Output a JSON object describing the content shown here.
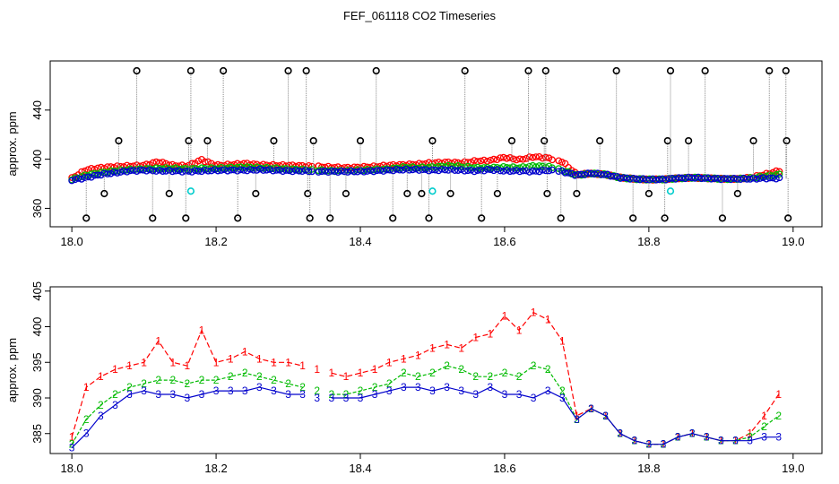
{
  "title": "FEF_061118  CO2 Timeseries",
  "colors": {
    "series1": "#ff0000",
    "series2": "#00bb00",
    "series3": "#0000cc",
    "flagged": "#000000",
    "cyan": "#00cccc",
    "axis": "#000000",
    "spike_line": "#888888"
  },
  "chart_data": [
    {
      "type": "scatter",
      "panel": "top",
      "xlabel": "",
      "ylabel": "approx. ppm",
      "xlim": [
        17.97,
        19.04
      ],
      "ylim": [
        345,
        480
      ],
      "x_ticks": [
        18.0,
        18.2,
        18.4,
        18.6,
        18.8,
        19.0
      ],
      "x_tick_labels": [
        "18.0",
        "18.2",
        "18.4",
        "18.6",
        "18.8",
        "19.0"
      ],
      "y_ticks": [
        360,
        400,
        440
      ],
      "y_tick_labels": [
        "360",
        "400",
        "440"
      ],
      "gaps": [
        [
          18.335,
          18.342
        ],
        [
          18.668,
          18.675
        ]
      ],
      "flagged_points": [
        {
          "x": 18.02,
          "y": 352
        },
        {
          "x": 18.045,
          "y": 372
        },
        {
          "x": 18.065,
          "y": 415
        },
        {
          "x": 18.09,
          "y": 472
        },
        {
          "x": 18.112,
          "y": 352
        },
        {
          "x": 18.135,
          "y": 372
        },
        {
          "x": 18.158,
          "y": 352
        },
        {
          "x": 18.162,
          "y": 415
        },
        {
          "x": 18.165,
          "y": 472
        },
        {
          "x": 18.188,
          "y": 415
        },
        {
          "x": 18.21,
          "y": 472
        },
        {
          "x": 18.23,
          "y": 352
        },
        {
          "x": 18.255,
          "y": 372
        },
        {
          "x": 18.28,
          "y": 415
        },
        {
          "x": 18.3,
          "y": 472
        },
        {
          "x": 18.325,
          "y": 472
        },
        {
          "x": 18.327,
          "y": 372
        },
        {
          "x": 18.33,
          "y": 352
        },
        {
          "x": 18.335,
          "y": 415
        },
        {
          "x": 18.358,
          "y": 352
        },
        {
          "x": 18.38,
          "y": 372
        },
        {
          "x": 18.4,
          "y": 415
        },
        {
          "x": 18.422,
          "y": 472
        },
        {
          "x": 18.445,
          "y": 352
        },
        {
          "x": 18.465,
          "y": 372
        },
        {
          "x": 18.485,
          "y": 372
        },
        {
          "x": 18.495,
          "y": 352
        },
        {
          "x": 18.5,
          "y": 415
        },
        {
          "x": 18.525,
          "y": 372
        },
        {
          "x": 18.545,
          "y": 472
        },
        {
          "x": 18.568,
          "y": 352
        },
        {
          "x": 18.59,
          "y": 372
        },
        {
          "x": 18.61,
          "y": 415
        },
        {
          "x": 18.633,
          "y": 472
        },
        {
          "x": 18.655,
          "y": 415
        },
        {
          "x": 18.657,
          "y": 472
        },
        {
          "x": 18.659,
          "y": 372
        },
        {
          "x": 18.678,
          "y": 352
        },
        {
          "x": 18.7,
          "y": 372
        },
        {
          "x": 18.732,
          "y": 415
        },
        {
          "x": 18.755,
          "y": 472
        },
        {
          "x": 18.778,
          "y": 352
        },
        {
          "x": 18.8,
          "y": 372
        },
        {
          "x": 18.822,
          "y": 352
        },
        {
          "x": 18.826,
          "y": 415
        },
        {
          "x": 18.83,
          "y": 472
        },
        {
          "x": 18.855,
          "y": 415
        },
        {
          "x": 18.878,
          "y": 472
        },
        {
          "x": 18.902,
          "y": 352
        },
        {
          "x": 18.923,
          "y": 372
        },
        {
          "x": 18.945,
          "y": 415
        },
        {
          "x": 18.967,
          "y": 472
        },
        {
          "x": 18.99,
          "y": 472
        },
        {
          "x": 18.991,
          "y": 415
        },
        {
          "x": 18.993,
          "y": 352
        }
      ],
      "cyan_points": [
        {
          "x": 18.165,
          "y": 374
        },
        {
          "x": 18.5,
          "y": 374
        },
        {
          "x": 18.83,
          "y": 374
        }
      ]
    },
    {
      "type": "line",
      "panel": "bottom",
      "xlabel": "",
      "ylabel": "approx. ppm",
      "xlim": [
        17.97,
        19.04
      ],
      "ylim": [
        382.2,
        405.6
      ],
      "x_ticks": [
        18.0,
        18.2,
        18.4,
        18.6,
        18.8,
        19.0
      ],
      "x_tick_labels": [
        "18.0",
        "18.2",
        "18.4",
        "18.6",
        "18.8",
        "19.0"
      ],
      "y_ticks": [
        385,
        390,
        395,
        400,
        405
      ],
      "y_tick_labels": [
        "385",
        "390",
        "395",
        "400",
        "405"
      ],
      "gaps": [
        [
          18.335,
          18.342
        ],
        [
          18.668,
          18.675
        ]
      ],
      "x": [
        18.0,
        18.02,
        18.04,
        18.06,
        18.08,
        18.1,
        18.12,
        18.14,
        18.16,
        18.18,
        18.2,
        18.22,
        18.24,
        18.26,
        18.28,
        18.3,
        18.32,
        18.34,
        18.36,
        18.38,
        18.4,
        18.42,
        18.44,
        18.46,
        18.48,
        18.5,
        18.52,
        18.54,
        18.56,
        18.58,
        18.6,
        18.62,
        18.64,
        18.66,
        18.68,
        18.7,
        18.72,
        18.74,
        18.76,
        18.78,
        18.8,
        18.82,
        18.84,
        18.86,
        18.88,
        18.9,
        18.92,
        18.94,
        18.96,
        18.98
      ],
      "series": [
        {
          "name": "1",
          "values": [
            384.5,
            391.5,
            393.0,
            394.0,
            394.5,
            395.0,
            398.0,
            395.0,
            394.5,
            399.5,
            395.0,
            395.5,
            396.5,
            395.5,
            395.0,
            395.0,
            394.5,
            394.0,
            393.5,
            393.0,
            393.5,
            394.0,
            395.0,
            395.5,
            396.0,
            397.0,
            397.5,
            397.0,
            398.5,
            399.0,
            401.5,
            399.5,
            402.0,
            401.0,
            398.0,
            387.5,
            388.5,
            387.5,
            385.0,
            384.0,
            383.5,
            383.5,
            384.5,
            385.0,
            384.5,
            384.0,
            384.0,
            385.0,
            387.5,
            390.5
          ]
        },
        {
          "name": "2",
          "values": [
            383.5,
            387.0,
            389.0,
            390.5,
            391.5,
            392.0,
            392.5,
            392.5,
            392.0,
            392.5,
            392.5,
            393.0,
            393.5,
            393.0,
            392.5,
            392.0,
            391.5,
            391.0,
            390.5,
            390.5,
            391.0,
            391.5,
            392.0,
            393.5,
            393.0,
            393.5,
            394.5,
            394.0,
            393.0,
            393.0,
            393.5,
            393.0,
            394.5,
            394.0,
            391.0,
            387.0,
            388.5,
            387.5,
            385.0,
            384.0,
            383.5,
            383.5,
            384.5,
            385.0,
            384.5,
            384.0,
            384.0,
            384.5,
            386.0,
            387.5
          ]
        },
        {
          "name": "3",
          "values": [
            383.0,
            385.0,
            387.5,
            389.0,
            390.5,
            391.0,
            390.5,
            390.5,
            390.0,
            390.5,
            391.0,
            391.0,
            391.0,
            391.5,
            391.0,
            390.5,
            390.5,
            390.0,
            390.0,
            390.0,
            390.0,
            390.5,
            391.0,
            391.5,
            391.5,
            391.0,
            391.5,
            391.0,
            390.5,
            391.5,
            390.5,
            390.5,
            390.0,
            391.0,
            390.0,
            387.0,
            388.5,
            387.5,
            385.0,
            384.0,
            383.5,
            383.5,
            384.5,
            385.0,
            384.5,
            384.0,
            384.0,
            384.0,
            384.5,
            384.5
          ]
        }
      ]
    }
  ]
}
